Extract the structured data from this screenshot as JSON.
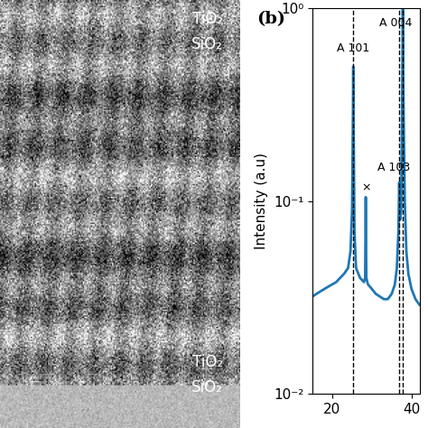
{
  "chart_data": {
    "type": "line",
    "panel_label": "(b)",
    "y_label": "Intensity (a.u)",
    "x": [
      15,
      17,
      19,
      21,
      22,
      23,
      24,
      24.6,
      25.0,
      25.2,
      25.3,
      25.4,
      25.6,
      26.0,
      27,
      28,
      28.3,
      28.45,
      28.6,
      29,
      30,
      31,
      32,
      33,
      34,
      35,
      35.8,
      36.3,
      36.7,
      36.9,
      37.1,
      37.4,
      37.6,
      37.8,
      38.0,
      38.3,
      38.7,
      39.2,
      40,
      41,
      42
    ],
    "values": [
      0.032,
      0.034,
      0.036,
      0.038,
      0.04,
      0.042,
      0.045,
      0.055,
      0.09,
      0.25,
      0.5,
      0.25,
      0.07,
      0.045,
      0.04,
      0.038,
      0.04,
      0.105,
      0.04,
      0.037,
      0.035,
      0.033,
      0.032,
      0.031,
      0.031,
      0.033,
      0.037,
      0.045,
      0.07,
      0.125,
      0.08,
      0.09,
      0.25,
      1.0,
      0.3,
      0.1,
      0.055,
      0.042,
      0.035,
      0.031,
      0.029
    ],
    "color": "#1f77b4",
    "reference_lines": [
      25.3,
      36.95,
      37.8
    ],
    "annotations": [
      {
        "text": "A 101",
        "x": 25.3,
        "y": 0.58
      },
      {
        "text": "×",
        "x": 28.45,
        "y": 0.11
      },
      {
        "text": "A 103",
        "x": 35.6,
        "y": 0.14
      },
      {
        "text": "A 004",
        "x": 35.9,
        "y": 0.78
      }
    ],
    "log": "y",
    "xlim": [
      15,
      42
    ],
    "xticks": [
      20,
      40
    ],
    "ylim": [
      0.01,
      1.0
    ],
    "yticks": [
      {
        "value": 0.01,
        "label": "10⁻²"
      },
      {
        "value": 0.1,
        "label": "10⁻¹"
      },
      {
        "value": 1.0,
        "label": "10⁰"
      }
    ]
  },
  "image": {
    "labels_top": [
      "TiO₂",
      "SiO₂"
    ],
    "labels_bottom": [
      "TiO₂",
      "SiO₂"
    ]
  }
}
